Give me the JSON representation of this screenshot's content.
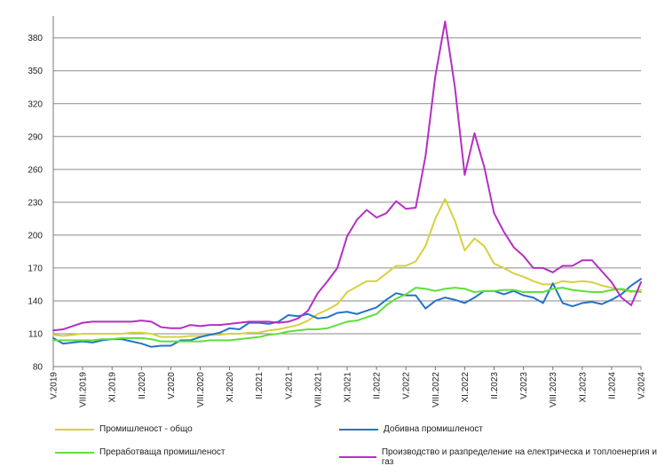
{
  "chart_data": {
    "type": "line",
    "title": "",
    "xlabel": "",
    "ylabel": "",
    "ylim": [
      80,
      400
    ],
    "yticks": [
      80,
      110,
      140,
      170,
      200,
      230,
      260,
      290,
      320,
      350,
      380
    ],
    "grid": true,
    "legend_position": "bottom",
    "x_labels": [
      {
        "index": 0,
        "label": "V.2019"
      },
      {
        "index": 3,
        "label": "VIII.2019"
      },
      {
        "index": 6,
        "label": "XI.2019"
      },
      {
        "index": 9,
        "label": "II.2020"
      },
      {
        "index": 12,
        "label": "V.2020"
      },
      {
        "index": 15,
        "label": "VIII.2020"
      },
      {
        "index": 18,
        "label": "XI.2020"
      },
      {
        "index": 21,
        "label": "II.2021"
      },
      {
        "index": 24,
        "label": "V.2021"
      },
      {
        "index": 27,
        "label": "VIII.2021"
      },
      {
        "index": 30,
        "label": "XI.2021"
      },
      {
        "index": 33,
        "label": "II.2022"
      },
      {
        "index": 36,
        "label": "V.2022"
      },
      {
        "index": 39,
        "label": "VIII.2022"
      },
      {
        "index": 42,
        "label": "XI.2022"
      },
      {
        "index": 45,
        "label": "II.2023"
      },
      {
        "index": 48,
        "label": "V.2023"
      },
      {
        "index": 51,
        "label": "VIII.2023"
      },
      {
        "index": 54,
        "label": "XI.2023"
      },
      {
        "index": 57,
        "label": "II.2024"
      },
      {
        "index": 60,
        "label": "V.2024"
      }
    ],
    "series": [
      {
        "name": "Промишленост - общо",
        "color": "#d6d140",
        "values": [
          109,
          108,
          109,
          110,
          110,
          110,
          110,
          110,
          111,
          111,
          110,
          107,
          107,
          107,
          108,
          108,
          109,
          109,
          110,
          110,
          111,
          111,
          113,
          114,
          116,
          118,
          122,
          128,
          132,
          137,
          148,
          153,
          158,
          158,
          165,
          172,
          172,
          176,
          190,
          215,
          233,
          213,
          186,
          197,
          190,
          174,
          170,
          165,
          162,
          158,
          155,
          155,
          158,
          157,
          158,
          157,
          154,
          152,
          150,
          148,
          150
        ]
      },
      {
        "name": "Добивна промишленост",
        "color": "#2474c8",
        "values": [
          106,
          101,
          102,
          103,
          102,
          104,
          105,
          105,
          103,
          101,
          98,
          99,
          99,
          104,
          104,
          107,
          109,
          111,
          115,
          114,
          120,
          120,
          119,
          121,
          127,
          126,
          128,
          124,
          125,
          129,
          130,
          128,
          131,
          134,
          141,
          147,
          145,
          145,
          133,
          140,
          143,
          141,
          138,
          143,
          149,
          149,
          146,
          149,
          145,
          143,
          138,
          156,
          138,
          135,
          138,
          139,
          137,
          141,
          146,
          154,
          160
        ]
      },
      {
        "name": "Преработваща промишленост",
        "color": "#5fdf3a",
        "values": [
          104,
          104,
          104,
          104,
          104,
          105,
          105,
          106,
          106,
          106,
          105,
          103,
          103,
          103,
          103,
          103,
          104,
          104,
          104,
          105,
          106,
          107,
          109,
          110,
          112,
          113,
          114,
          114,
          115,
          118,
          121,
          122,
          125,
          128,
          136,
          142,
          146,
          152,
          151,
          149,
          151,
          152,
          151,
          148,
          149,
          149,
          150,
          150,
          148,
          148,
          148,
          151,
          152,
          150,
          149,
          148,
          148,
          150,
          151,
          149,
          148
        ]
      },
      {
        "name": "Производство и разпределение на електрическа и топлоенергия и газ",
        "color": "#b52fc4",
        "values": [
          113,
          114,
          117,
          120,
          121,
          121,
          121,
          121,
          121,
          122,
          121,
          116,
          115,
          115,
          118,
          117,
          118,
          118,
          119,
          120,
          121,
          121,
          121,
          120,
          121,
          124,
          131,
          147,
          158,
          170,
          199,
          214,
          223,
          216,
          220,
          231,
          224,
          225,
          272,
          345,
          395,
          335,
          255,
          293,
          262,
          220,
          203,
          189,
          181,
          170,
          170,
          166,
          172,
          172,
          177,
          177,
          167,
          157,
          143,
          136,
          157
        ]
      }
    ]
  }
}
